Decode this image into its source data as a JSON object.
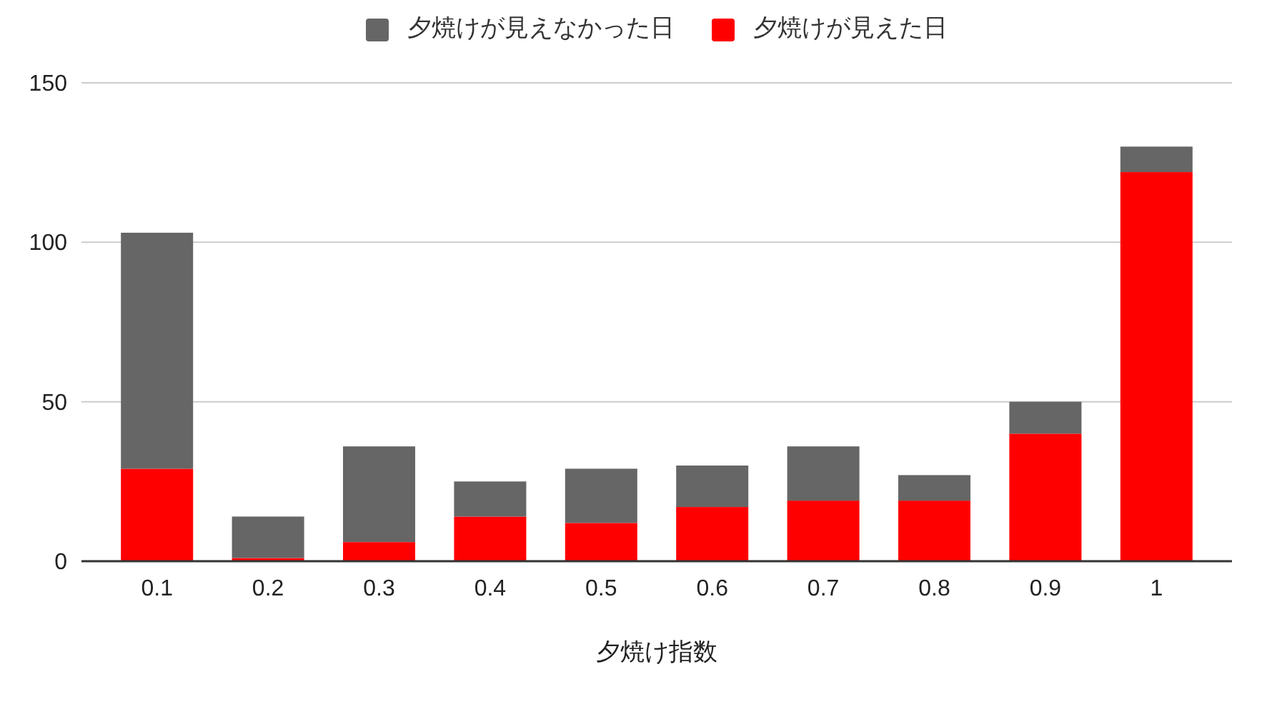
{
  "chart_data": {
    "type": "bar",
    "stacked": true,
    "xlabel": "夕焼け指数",
    "categories": [
      "0.1",
      "0.2",
      "0.3",
      "0.4",
      "0.5",
      "0.6",
      "0.7",
      "0.8",
      "0.9",
      "1"
    ],
    "series": [
      {
        "name": "夕焼けが見えた日",
        "color": "#ff0000",
        "values": [
          29,
          1,
          6,
          14,
          12,
          17,
          19,
          19,
          40,
          122
        ]
      },
      {
        "name": "夕焼けが見えなかった日",
        "color": "#666666",
        "values": [
          74,
          13,
          30,
          11,
          17,
          13,
          17,
          8,
          10,
          8
        ]
      }
    ],
    "ylim": [
      0,
      150
    ],
    "yticks": [
      0,
      50,
      100,
      150
    ],
    "grid": "y",
    "legend": "top"
  }
}
